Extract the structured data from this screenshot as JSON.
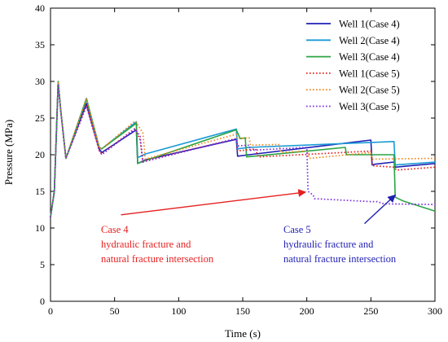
{
  "chart_data": {
    "type": "line",
    "xlabel": "Time (s)",
    "ylabel": "Pressure (MPa)",
    "xlim": [
      0,
      300
    ],
    "ylim": [
      0,
      40
    ],
    "xticks": [
      0,
      50,
      100,
      150,
      200,
      250,
      300
    ],
    "yticks": [
      0,
      5,
      10,
      15,
      20,
      25,
      30,
      35,
      40
    ],
    "grid": false,
    "legend_position": "top-right",
    "series": [
      {
        "name": "Well 1(Case 4)",
        "color": "#1f1fb4",
        "dash": "solid",
        "points": [
          [
            0,
            11.5
          ],
          [
            3,
            15
          ],
          [
            6,
            29.8
          ],
          [
            8,
            26
          ],
          [
            12,
            19.5
          ],
          [
            28,
            27.0
          ],
          [
            38,
            20.8
          ],
          [
            40,
            20.3
          ],
          [
            67,
            23.4
          ],
          [
            68,
            18.8
          ],
          [
            74,
            19.3
          ],
          [
            145,
            22.1
          ],
          [
            146,
            19.8
          ],
          [
            155,
            20.0
          ],
          [
            250,
            22.0
          ],
          [
            251,
            18.6
          ],
          [
            253,
            18.7
          ],
          [
            268,
            19.0
          ],
          [
            269,
            18.3
          ],
          [
            300,
            18.8
          ]
        ]
      },
      {
        "name": "Well 2(Case 4)",
        "color": "#1a9bd7",
        "dash": "solid",
        "points": [
          [
            0,
            11.5
          ],
          [
            3,
            15
          ],
          [
            6,
            30.0
          ],
          [
            8,
            26
          ],
          [
            12,
            19.5
          ],
          [
            28,
            27.7
          ],
          [
            38,
            21.0
          ],
          [
            40,
            20.8
          ],
          [
            67,
            24.5
          ],
          [
            68,
            19.6
          ],
          [
            74,
            20.1
          ],
          [
            145,
            23.5
          ],
          [
            146,
            20.8
          ],
          [
            155,
            21.0
          ],
          [
            268,
            21.8
          ],
          [
            269,
            18.6
          ],
          [
            300,
            19.0
          ]
        ]
      },
      {
        "name": "Well 3(Case 4)",
        "color": "#2ca444",
        "dash": "solid",
        "points": [
          [
            0,
            11.5
          ],
          [
            3,
            15
          ],
          [
            6,
            30.0
          ],
          [
            8,
            26
          ],
          [
            12,
            19.5
          ],
          [
            28,
            27.6
          ],
          [
            38,
            21.0
          ],
          [
            40,
            20.8
          ],
          [
            67,
            24.3
          ],
          [
            68,
            18.8
          ],
          [
            74,
            19.2
          ],
          [
            145,
            23.4
          ],
          [
            148,
            22.2
          ],
          [
            152,
            22.3
          ],
          [
            153,
            19.7
          ],
          [
            230,
            21.0
          ],
          [
            231,
            20.0
          ],
          [
            268,
            20.0
          ],
          [
            269,
            14.2
          ],
          [
            275,
            13.7
          ],
          [
            300,
            12.3
          ]
        ]
      },
      {
        "name": "Well 1(Case 5)",
        "color": "#e62020",
        "dash": "dotted",
        "points": [
          [
            0,
            11.5
          ],
          [
            3,
            15
          ],
          [
            6,
            29.8
          ],
          [
            8,
            26
          ],
          [
            12,
            19.5
          ],
          [
            28,
            26.7
          ],
          [
            38,
            20.6
          ],
          [
            40,
            20.1
          ],
          [
            66,
            23.6
          ],
          [
            70,
            22.0
          ],
          [
            72,
            19.1
          ],
          [
            145,
            22.2
          ],
          [
            146,
            20.5
          ],
          [
            160,
            20.8
          ],
          [
            162,
            19.7
          ],
          [
            250,
            20.5
          ],
          [
            251,
            18.5
          ],
          [
            268,
            18.3
          ],
          [
            270,
            17.9
          ],
          [
            300,
            18.3
          ]
        ]
      },
      {
        "name": "Well 2(Case 5)",
        "color": "#f0851a",
        "dash": "dotted",
        "points": [
          [
            0,
            11.5
          ],
          [
            3,
            15
          ],
          [
            6,
            30.0
          ],
          [
            8,
            26
          ],
          [
            12,
            19.5
          ],
          [
            28,
            27.7
          ],
          [
            38,
            21.0
          ],
          [
            40,
            20.8
          ],
          [
            66,
            24.6
          ],
          [
            72,
            23.0
          ],
          [
            74,
            19.4
          ],
          [
            145,
            22.8
          ],
          [
            146,
            22.2
          ],
          [
            155,
            22.3
          ],
          [
            156,
            21.3
          ],
          [
            178,
            21.4
          ],
          [
            180,
            20.3
          ],
          [
            200,
            20.5
          ],
          [
            202,
            19.5
          ],
          [
            250,
            20.3
          ],
          [
            251,
            19.4
          ],
          [
            300,
            19.5
          ]
        ]
      },
      {
        "name": "Well 3(Case 5)",
        "color": "#7a2ee0",
        "dash": "dotted",
        "points": [
          [
            0,
            11.5
          ],
          [
            3,
            15
          ],
          [
            6,
            29.6
          ],
          [
            8,
            26
          ],
          [
            12,
            19.5
          ],
          [
            28,
            26.6
          ],
          [
            38,
            20.6
          ],
          [
            40,
            20.0
          ],
          [
            66,
            23.5
          ],
          [
            70,
            22.5
          ],
          [
            72,
            19.0
          ],
          [
            145,
            22.2
          ],
          [
            146,
            21.2
          ],
          [
            155,
            21.3
          ],
          [
            156,
            20.6
          ],
          [
            200,
            21.0
          ],
          [
            201,
            15.0
          ],
          [
            205,
            14.5
          ],
          [
            206,
            14.0
          ],
          [
            250,
            13.6
          ],
          [
            255,
            13.6
          ],
          [
            260,
            13.3
          ],
          [
            300,
            13.2
          ]
        ]
      }
    ],
    "annotations": [
      {
        "color": "#e62020",
        "lines": [
          "Case 4",
          "hydraulic fracture and",
          "natural fracture intersection"
        ],
        "arrow_from": [
          55,
          11.8
        ],
        "arrow_to": [
          199,
          14.9
        ]
      },
      {
        "color": "#1f1fb4",
        "lines": [
          "Case 5",
          "hydraulic fracture and",
          "natural fracture intersection"
        ],
        "arrow_from": [
          245,
          10.6
        ],
        "arrow_to": [
          269,
          14.5
        ]
      }
    ]
  }
}
